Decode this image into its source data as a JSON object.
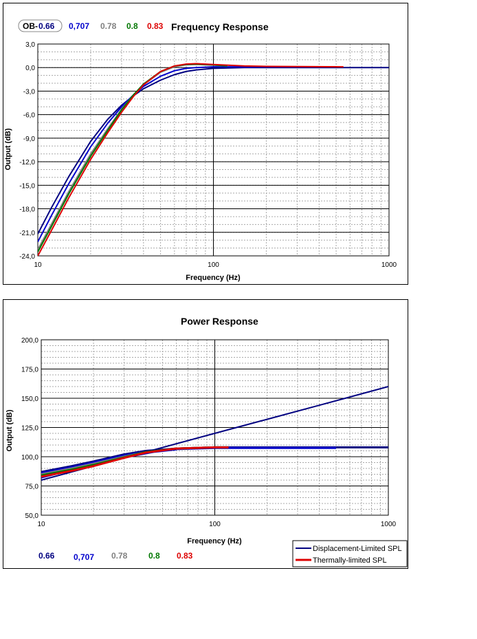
{
  "chart_data": [
    {
      "type": "line",
      "title": "Frequency Response",
      "xlabel": "Frequency (Hz)",
      "ylabel": "Output (dB)",
      "x_scale": "log",
      "xlim": [
        10,
        1000
      ],
      "ylim": [
        -24,
        3
      ],
      "grid": true,
      "y_ticks": [
        "3,0",
        "0,0",
        "-3,0",
        "-6,0",
        "-9,0",
        "-12,0",
        "-15,0",
        "-18,0",
        "-21,0",
        "-24,0"
      ],
      "y_tick_values": [
        3,
        0,
        -3,
        -6,
        -9,
        -12,
        -15,
        -18,
        -21,
        -24
      ],
      "x_ticks": [
        "10",
        "100",
        "1000"
      ],
      "x_tick_values": [
        10,
        100,
        1000
      ],
      "legend": {
        "prefix": "OB-",
        "items": [
          {
            "label": "0.66",
            "color": "#000080"
          },
          {
            "label": "0,707",
            "color": "#0000cc"
          },
          {
            "label": "0.78",
            "color": "#808080"
          },
          {
            "label": "0.8",
            "color": "#007700"
          },
          {
            "label": "0.83",
            "color": "#dd0000"
          }
        ]
      },
      "series": [
        {
          "color": "#000080",
          "x": [
            10,
            12,
            15,
            20,
            25,
            30,
            35,
            40,
            50,
            60,
            70,
            80,
            100,
            150,
            200,
            400,
            1000
          ],
          "y": [
            -21.2,
            -17.8,
            -13.9,
            -9.4,
            -6.6,
            -4.8,
            -3.6,
            -2.7,
            -1.6,
            -0.9,
            -0.5,
            -0.3,
            -0.1,
            0.0,
            0.0,
            0.0,
            0.0
          ]
        },
        {
          "color": "#0000cc",
          "x": [
            10,
            12,
            15,
            20,
            25,
            30,
            35,
            40,
            50,
            60,
            70,
            80,
            100,
            150,
            200,
            500
          ],
          "y": [
            -22.2,
            -18.8,
            -14.8,
            -10.1,
            -7.1,
            -5.0,
            -3.5,
            -2.4,
            -1.1,
            -0.4,
            -0.1,
            0.0,
            0.1,
            0.1,
            0.1,
            0.1
          ]
        },
        {
          "color": "#808080",
          "x": [
            10,
            12,
            15,
            20,
            25,
            30,
            35,
            40,
            50,
            60,
            70,
            80,
            100,
            120
          ],
          "y": [
            -23.2,
            -19.9,
            -15.8,
            -11.0,
            -7.8,
            -5.3,
            -3.5,
            -2.2,
            -0.6,
            0.1,
            0.35,
            0.4,
            0.3,
            0.2
          ]
        },
        {
          "color": "#007700",
          "x": [
            10,
            12,
            15,
            20,
            25,
            30,
            35,
            40,
            50,
            60,
            70,
            80,
            100,
            120
          ],
          "y": [
            -23.5,
            -20.2,
            -16.1,
            -11.3,
            -8.0,
            -5.4,
            -3.5,
            -2.1,
            -0.5,
            0.2,
            0.4,
            0.45,
            0.35,
            0.2
          ]
        },
        {
          "color": "#dd0000",
          "x": [
            10,
            12,
            15,
            20,
            25,
            30,
            35,
            40,
            50,
            60,
            70,
            80,
            100,
            150,
            200,
            550
          ],
          "y": [
            -24.0,
            -20.7,
            -16.6,
            -11.7,
            -8.3,
            -5.7,
            -3.7,
            -2.2,
            -0.5,
            0.2,
            0.45,
            0.5,
            0.4,
            0.2,
            0.15,
            0.1
          ]
        }
      ]
    },
    {
      "type": "line",
      "title": "Power Response",
      "xlabel": "Frequency (Hz)",
      "ylabel": "Output (dB)",
      "x_scale": "log",
      "xlim": [
        10,
        1000
      ],
      "ylim": [
        50,
        200
      ],
      "grid": true,
      "y_ticks": [
        "200,0",
        "175,0",
        "150,0",
        "125,0",
        "100,0",
        "75,0",
        "50,0"
      ],
      "y_tick_values": [
        200,
        175,
        150,
        125,
        100,
        75,
        50
      ],
      "x_ticks": [
        "10",
        "100",
        "1000"
      ],
      "x_tick_values": [
        10,
        100,
        1000
      ],
      "values_legend": [
        {
          "label": "0.66",
          "color": "#000080"
        },
        {
          "label": "0,707",
          "color": "#0000cc"
        },
        {
          "label": "0.78",
          "color": "#808080"
        },
        {
          "label": "0.8",
          "color": "#007700"
        },
        {
          "label": "0.83",
          "color": "#dd0000"
        }
      ],
      "legend": {
        "placement": "bottom-right",
        "items": [
          {
            "label": "Displacement-Limited SPL",
            "color": "#000080"
          },
          {
            "label": "Thermally-limited SPL",
            "color": "#dd0000"
          }
        ]
      },
      "series": [
        {
          "kind": "displacement",
          "color": "#000080",
          "x": [
            10,
            20,
            40,
            100,
            200,
            400,
            1000
          ],
          "y": [
            80,
            92,
            104,
            120,
            132,
            144,
            160
          ]
        },
        {
          "kind": "displacement",
          "color": "#0000cc",
          "x": [
            10,
            20,
            30,
            45,
            60
          ],
          "y": [
            82,
            93,
            99,
            104,
            106
          ]
        },
        {
          "kind": "thermal",
          "color": "#000080",
          "x": [
            10,
            15,
            20,
            30,
            40,
            60,
            100,
            200,
            1000
          ],
          "y": [
            87,
            92,
            96,
            102,
            105,
            107,
            108,
            108,
            108
          ]
        },
        {
          "kind": "thermal",
          "color": "#0000cc",
          "x": [
            10,
            15,
            20,
            30,
            40,
            60,
            100,
            500
          ],
          "y": [
            86,
            91,
            95,
            101,
            104,
            106.5,
            107.5,
            107.5
          ]
        },
        {
          "kind": "thermal",
          "color": "#808080",
          "x": [
            10,
            15,
            20,
            30,
            40,
            60,
            100,
            120
          ],
          "y": [
            85,
            90,
            94,
            100,
            104,
            107,
            108,
            108
          ]
        },
        {
          "kind": "thermal",
          "color": "#007700",
          "x": [
            10,
            15,
            20,
            30,
            40,
            60,
            100,
            120
          ],
          "y": [
            84,
            89,
            93,
            99.5,
            104,
            107,
            108,
            108
          ]
        },
        {
          "kind": "thermal",
          "color": "#dd0000",
          "x": [
            10,
            15,
            20,
            30,
            40,
            60,
            100,
            120
          ],
          "y": [
            83,
            88,
            92,
            99,
            103.5,
            107,
            108,
            108
          ]
        }
      ]
    }
  ]
}
